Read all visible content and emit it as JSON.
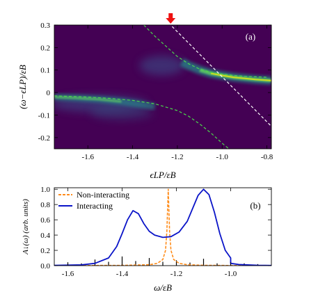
{
  "chart_data": [
    {
      "type": "heatmap",
      "panel_label": "(a)",
      "xlabel": "ϵLP/εB",
      "ylabel": "(ω−ϵLP)/εB",
      "xlim": [
        -1.75,
        -0.78
      ],
      "ylim": [
        -0.25,
        0.3
      ],
      "xticks": [
        -1.6,
        -1.4,
        -1.2,
        -1.0,
        -0.8
      ],
      "xtick_labels": [
        "-1.6",
        "-1.4",
        "-1.2",
        "-1.0",
        "-0.8"
      ],
      "yticks": [
        -0.2,
        -0.1,
        0,
        0.1,
        0.2,
        0.3
      ],
      "ytick_labels": [
        "-0.2",
        "-0.1",
        "0",
        "0.1",
        "0.2",
        "0.3"
      ],
      "background_color": "#440154",
      "marker": {
        "type": "down-arrow",
        "x": -1.23,
        "color": "#ee1111"
      },
      "white_dashed_line": {
        "slope": -1.0,
        "x0": -1.23,
        "y0": 0.3
      },
      "upper_branch_green_dashed": {
        "x": [
          -1.35,
          -1.3,
          -1.25,
          -1.2,
          -1.15,
          -1.1,
          -1.05,
          -1.0,
          -0.95,
          -0.9,
          -0.85,
          -0.8
        ],
        "y": [
          0.3,
          0.25,
          0.205,
          0.16,
          0.128,
          0.104,
          0.09,
          0.082,
          0.076,
          0.072,
          0.07,
          0.068
        ]
      },
      "lower_branch_green_dashed": {
        "x": [
          -1.75,
          -1.6,
          -1.5,
          -1.4,
          -1.3,
          -1.2,
          -1.15,
          -1.1,
          -1.05,
          -1.0,
          -0.97
        ],
        "y": [
          -0.015,
          -0.02,
          -0.026,
          -0.035,
          -0.05,
          -0.08,
          -0.105,
          -0.14,
          -0.18,
          -0.225,
          -0.25
        ]
      }
    },
    {
      "type": "line",
      "panel_label": "(b)",
      "xlabel": "ω/εB",
      "ylabel": "A↓(ω) (arb. units)",
      "xlim": [
        -1.65,
        -0.85
      ],
      "ylim": [
        0,
        1.02
      ],
      "xticks": [
        -1.6,
        -1.4,
        -1.2,
        -1.0
      ],
      "xtick_labels": [
        "-1.6",
        "-1.4",
        "-1.2",
        "-1.0"
      ],
      "yticks": [
        0,
        0.2,
        0.4,
        0.6,
        0.8,
        1.0
      ],
      "ytick_labels": [
        "0.0",
        "0.2",
        "0.4",
        "0.6",
        "0.8",
        "1.0"
      ],
      "legend_position": "top-left",
      "series": [
        {
          "name": "Non-interacting",
          "color": "#ff8c1a",
          "style": "dashed",
          "x": [
            -1.65,
            -1.4,
            -1.3,
            -1.27,
            -1.25,
            -1.24,
            -1.235,
            -1.23,
            -1.225,
            -1.22,
            -1.21,
            -1.19,
            -1.16,
            -1.1,
            -1.0,
            -0.85
          ],
          "y": [
            0.0,
            0.004,
            0.012,
            0.03,
            0.08,
            0.2,
            0.45,
            1.0,
            0.45,
            0.2,
            0.08,
            0.03,
            0.012,
            0.005,
            0.002,
            0.0
          ]
        },
        {
          "name": "Interacting",
          "color": "#0a14c8",
          "style": "solid",
          "x": [
            -1.65,
            -1.55,
            -1.5,
            -1.45,
            -1.42,
            -1.4,
            -1.38,
            -1.36,
            -1.34,
            -1.32,
            -1.3,
            -1.28,
            -1.25,
            -1.22,
            -1.19,
            -1.16,
            -1.14,
            -1.12,
            -1.1,
            -1.08,
            -1.06,
            -1.04,
            -1.02,
            -1.0,
            -1.0,
            -0.97,
            -0.9,
            -0.85
          ],
          "y": [
            0.003,
            0.01,
            0.03,
            0.1,
            0.25,
            0.42,
            0.6,
            0.72,
            0.68,
            0.55,
            0.45,
            0.4,
            0.37,
            0.38,
            0.44,
            0.58,
            0.75,
            0.92,
            1.0,
            0.93,
            0.7,
            0.42,
            0.2,
            0.1,
            0.03,
            0.015,
            0.005,
            0.002
          ]
        }
      ],
      "vertical_sticks": [
        -1.6,
        -1.55,
        -1.5,
        -1.45,
        -1.4,
        -1.35,
        -1.3,
        -1.25,
        -1.2,
        -1.15,
        -1.1,
        -1.05,
        -1.0,
        -0.95,
        -0.9
      ],
      "stick_heights": [
        0.04,
        0.03,
        0.08,
        0.05,
        0.12,
        0.06,
        0.1,
        0.05,
        0.07,
        0.04,
        0.09,
        0.03,
        0.06,
        0.03,
        0.02
      ]
    }
  ]
}
